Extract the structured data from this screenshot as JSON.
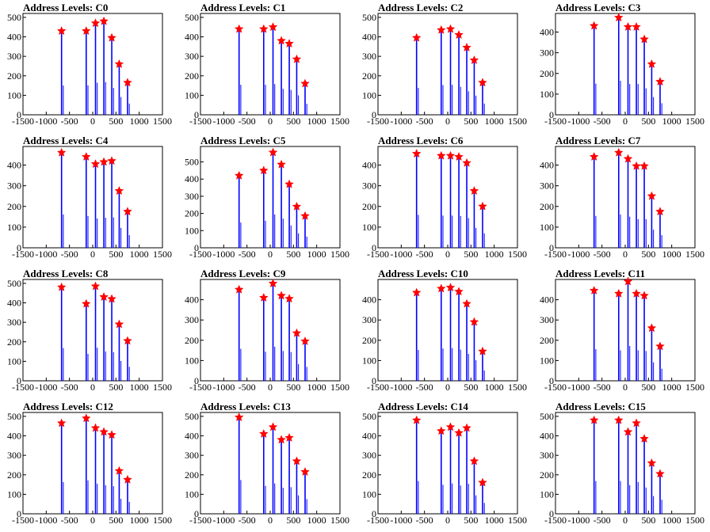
{
  "chart_data": [
    {
      "type": "bar",
      "title": "Address Levels: C0",
      "xlim": [
        -1500,
        1500
      ],
      "xticks": [
        -1500,
        -1000,
        -500,
        0,
        500,
        1000,
        1500
      ],
      "ylim": [
        0,
        520
      ],
      "yticks": [
        0,
        100,
        200,
        300,
        400,
        500
      ],
      "peaks": [
        {
          "x": -670,
          "y": 430
        },
        {
          "x": -140,
          "y": 430
        },
        {
          "x": 60,
          "y": 470
        },
        {
          "x": 240,
          "y": 480
        },
        {
          "x": 410,
          "y": 395
        },
        {
          "x": 570,
          "y": 260
        },
        {
          "x": 750,
          "y": 165
        }
      ]
    },
    {
      "type": "bar",
      "title": "Address Levels: C1",
      "xlim": [
        -1500,
        1500
      ],
      "xticks": [
        -1500,
        -1000,
        -500,
        0,
        500,
        1000,
        1500
      ],
      "ylim": [
        0,
        520
      ],
      "yticks": [
        0,
        100,
        200,
        300,
        400,
        500
      ],
      "peaks": [
        {
          "x": -670,
          "y": 440
        },
        {
          "x": -140,
          "y": 440
        },
        {
          "x": 60,
          "y": 450
        },
        {
          "x": 240,
          "y": 380
        },
        {
          "x": 410,
          "y": 365
        },
        {
          "x": 570,
          "y": 285
        },
        {
          "x": 750,
          "y": 160
        }
      ]
    },
    {
      "type": "bar",
      "title": "Address Levels: C2",
      "xlim": [
        -1500,
        1500
      ],
      "xticks": [
        -1500,
        -1000,
        -500,
        0,
        500,
        1000,
        1500
      ],
      "ylim": [
        0,
        520
      ],
      "yticks": [
        0,
        100,
        200,
        300,
        400,
        500
      ],
      "peaks": [
        {
          "x": -670,
          "y": 395
        },
        {
          "x": -140,
          "y": 435
        },
        {
          "x": 60,
          "y": 440
        },
        {
          "x": 240,
          "y": 410
        },
        {
          "x": 410,
          "y": 345
        },
        {
          "x": 570,
          "y": 280
        },
        {
          "x": 750,
          "y": 165
        }
      ]
    },
    {
      "type": "bar",
      "title": "Address Levels: C3",
      "xlim": [
        -1500,
        1500
      ],
      "xticks": [
        -1500,
        -1000,
        -500,
        0,
        500,
        1000,
        1500
      ],
      "ylim": [
        0,
        490
      ],
      "yticks": [
        0,
        100,
        200,
        300,
        400
      ],
      "peaks": [
        {
          "x": -670,
          "y": 430
        },
        {
          "x": -140,
          "y": 470
        },
        {
          "x": 60,
          "y": 425
        },
        {
          "x": 240,
          "y": 425
        },
        {
          "x": 410,
          "y": 365
        },
        {
          "x": 570,
          "y": 245
        },
        {
          "x": 750,
          "y": 160
        }
      ]
    },
    {
      "type": "bar",
      "title": "Address Levels: C4",
      "xlim": [
        -1500,
        1500
      ],
      "xticks": [
        -1500,
        -1000,
        -500,
        0,
        500,
        1000,
        1500
      ],
      "ylim": [
        0,
        490
      ],
      "yticks": [
        0,
        100,
        200,
        300,
        400
      ],
      "peaks": [
        {
          "x": -670,
          "y": 460
        },
        {
          "x": -140,
          "y": 440
        },
        {
          "x": 60,
          "y": 405
        },
        {
          "x": 240,
          "y": 415
        },
        {
          "x": 410,
          "y": 420
        },
        {
          "x": 570,
          "y": 275
        },
        {
          "x": 750,
          "y": 175
        }
      ]
    },
    {
      "type": "bar",
      "title": "Address Levels: C5",
      "xlim": [
        -1500,
        1500
      ],
      "xticks": [
        -1500,
        -1000,
        -500,
        0,
        500,
        1000,
        1500
      ],
      "ylim": [
        0,
        590
      ],
      "yticks": [
        0,
        100,
        200,
        300,
        400,
        500
      ],
      "peaks": [
        {
          "x": -670,
          "y": 420
        },
        {
          "x": -140,
          "y": 450
        },
        {
          "x": 60,
          "y": 555
        },
        {
          "x": 240,
          "y": 485
        },
        {
          "x": 410,
          "y": 370
        },
        {
          "x": 570,
          "y": 240
        },
        {
          "x": 750,
          "y": 185
        }
      ]
    },
    {
      "type": "bar",
      "title": "Address Levels: C6",
      "xlim": [
        -1500,
        1500
      ],
      "xticks": [
        -1500,
        -1000,
        -500,
        0,
        500,
        1000,
        1500
      ],
      "ylim": [
        0,
        490
      ],
      "yticks": [
        0,
        100,
        200,
        300,
        400
      ],
      "peaks": [
        {
          "x": -670,
          "y": 455
        },
        {
          "x": -140,
          "y": 445
        },
        {
          "x": 60,
          "y": 445
        },
        {
          "x": 240,
          "y": 440
        },
        {
          "x": 410,
          "y": 410
        },
        {
          "x": 570,
          "y": 275
        },
        {
          "x": 750,
          "y": 200
        }
      ]
    },
    {
      "type": "bar",
      "title": "Address Levels: C7",
      "xlim": [
        -1500,
        1500
      ],
      "xticks": [
        -1500,
        -1000,
        -500,
        0,
        500,
        1000,
        1500
      ],
      "ylim": [
        0,
        490
      ],
      "yticks": [
        0,
        100,
        200,
        300,
        400
      ],
      "peaks": [
        {
          "x": -670,
          "y": 440
        },
        {
          "x": -140,
          "y": 460
        },
        {
          "x": 60,
          "y": 430
        },
        {
          "x": 240,
          "y": 395
        },
        {
          "x": 410,
          "y": 395
        },
        {
          "x": 570,
          "y": 250
        },
        {
          "x": 750,
          "y": 175
        }
      ]
    },
    {
      "type": "bar",
      "title": "Address Levels: C8",
      "xlim": [
        -1500,
        1500
      ],
      "xticks": [
        -1500,
        -1000,
        -500,
        0,
        500,
        1000,
        1500
      ],
      "ylim": [
        0,
        520
      ],
      "yticks": [
        0,
        100,
        200,
        300,
        400,
        500
      ],
      "peaks": [
        {
          "x": -670,
          "y": 480
        },
        {
          "x": -140,
          "y": 395
        },
        {
          "x": 60,
          "y": 485
        },
        {
          "x": 240,
          "y": 430
        },
        {
          "x": 410,
          "y": 420
        },
        {
          "x": 570,
          "y": 290
        },
        {
          "x": 750,
          "y": 205
        }
      ]
    },
    {
      "type": "bar",
      "title": "Address Levels: C9",
      "xlim": [
        -1500,
        1500
      ],
      "xticks": [
        -1500,
        -1000,
        -500,
        0,
        500,
        1000,
        1500
      ],
      "ylim": [
        0,
        500
      ],
      "yticks": [
        0,
        100,
        200,
        300,
        400
      ],
      "peaks": [
        {
          "x": -670,
          "y": 450
        },
        {
          "x": -140,
          "y": 410
        },
        {
          "x": 60,
          "y": 480
        },
        {
          "x": 240,
          "y": 420
        },
        {
          "x": 410,
          "y": 405
        },
        {
          "x": 570,
          "y": 235
        },
        {
          "x": 750,
          "y": 195
        }
      ]
    },
    {
      "type": "bar",
      "title": "Address Levels: C10",
      "xlim": [
        -1500,
        1500
      ],
      "xticks": [
        -1500,
        -1000,
        -500,
        0,
        500,
        1000,
        1500
      ],
      "ylim": [
        0,
        500
      ],
      "yticks": [
        0,
        100,
        200,
        300,
        400
      ],
      "peaks": [
        {
          "x": -670,
          "y": 435
        },
        {
          "x": -140,
          "y": 455
        },
        {
          "x": 60,
          "y": 460
        },
        {
          "x": 240,
          "y": 440
        },
        {
          "x": 410,
          "y": 380
        },
        {
          "x": 570,
          "y": 290
        },
        {
          "x": 750,
          "y": 145
        }
      ]
    },
    {
      "type": "bar",
      "title": "Address Levels: C11",
      "xlim": [
        -1500,
        1500
      ],
      "xticks": [
        -1500,
        -1000,
        -500,
        0,
        500,
        1000,
        1500
      ],
      "ylim": [
        0,
        500
      ],
      "yticks": [
        0,
        100,
        200,
        300,
        400
      ],
      "peaks": [
        {
          "x": -670,
          "y": 445
        },
        {
          "x": -140,
          "y": 430
        },
        {
          "x": 60,
          "y": 490
        },
        {
          "x": 240,
          "y": 430
        },
        {
          "x": 410,
          "y": 420
        },
        {
          "x": 570,
          "y": 260
        },
        {
          "x": 750,
          "y": 170
        }
      ]
    },
    {
      "type": "bar",
      "title": "Address Levels: C12",
      "xlim": [
        -1500,
        1500
      ],
      "xticks": [
        -1500,
        -1000,
        -500,
        0,
        500,
        1000,
        1500
      ],
      "ylim": [
        0,
        520
      ],
      "yticks": [
        0,
        100,
        200,
        300,
        400,
        500
      ],
      "peaks": [
        {
          "x": -670,
          "y": 465
        },
        {
          "x": -140,
          "y": 490
        },
        {
          "x": 60,
          "y": 440
        },
        {
          "x": 240,
          "y": 420
        },
        {
          "x": 410,
          "y": 405
        },
        {
          "x": 570,
          "y": 220
        },
        {
          "x": 750,
          "y": 175
        }
      ]
    },
    {
      "type": "bar",
      "title": "Address Levels: C13",
      "xlim": [
        -1500,
        1500
      ],
      "xticks": [
        -1500,
        -1000,
        -500,
        0,
        500,
        1000,
        1500
      ],
      "ylim": [
        0,
        520
      ],
      "yticks": [
        0,
        100,
        200,
        300,
        400,
        500
      ],
      "peaks": [
        {
          "x": -670,
          "y": 495
        },
        {
          "x": -140,
          "y": 410
        },
        {
          "x": 60,
          "y": 445
        },
        {
          "x": 240,
          "y": 380
        },
        {
          "x": 410,
          "y": 390
        },
        {
          "x": 570,
          "y": 270
        },
        {
          "x": 750,
          "y": 215
        }
      ]
    },
    {
      "type": "bar",
      "title": "Address Levels: C14",
      "xlim": [
        -1500,
        1500
      ],
      "xticks": [
        -1500,
        -1000,
        -500,
        0,
        500,
        1000,
        1500
      ],
      "ylim": [
        0,
        520
      ],
      "yticks": [
        0,
        100,
        200,
        300,
        400,
        500
      ],
      "peaks": [
        {
          "x": -670,
          "y": 480
        },
        {
          "x": -140,
          "y": 425
        },
        {
          "x": 60,
          "y": 445
        },
        {
          "x": 240,
          "y": 415
        },
        {
          "x": 410,
          "y": 440
        },
        {
          "x": 570,
          "y": 270
        },
        {
          "x": 750,
          "y": 160
        }
      ]
    },
    {
      "type": "bar",
      "title": "Address Levels: C15",
      "xlim": [
        -1500,
        1500
      ],
      "xticks": [
        -1500,
        -1000,
        -500,
        0,
        500,
        1000,
        1500
      ],
      "ylim": [
        0,
        520
      ],
      "yticks": [
        0,
        100,
        200,
        300,
        400,
        500
      ],
      "peaks": [
        {
          "x": -670,
          "y": 480
        },
        {
          "x": -140,
          "y": 480
        },
        {
          "x": 60,
          "y": 420
        },
        {
          "x": 240,
          "y": 465
        },
        {
          "x": 410,
          "y": 385
        },
        {
          "x": 570,
          "y": 260
        },
        {
          "x": 750,
          "y": 205
        }
      ]
    }
  ],
  "colors": {
    "bar": "#0000ff",
    "marker": "#ff0000",
    "axis": "#000000"
  }
}
